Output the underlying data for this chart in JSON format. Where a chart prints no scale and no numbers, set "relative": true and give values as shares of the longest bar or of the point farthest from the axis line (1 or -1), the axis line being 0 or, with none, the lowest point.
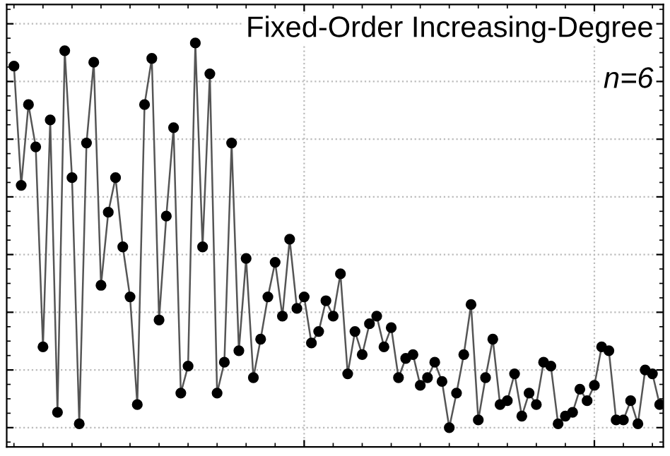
{
  "chart_data": {
    "type": "line",
    "title": "Fixed-Order Increasing-Degree",
    "subtitle": "n=6",
    "relative": true,
    "categories": [
      null,
      null,
      null,
      null,
      null,
      null,
      null,
      null,
      null,
      null,
      null,
      null,
      null,
      null,
      null,
      null,
      null,
      null,
      null,
      null,
      null,
      null,
      null,
      null,
      null,
      null,
      null,
      null,
      null,
      null,
      null,
      null,
      null,
      null,
      null,
      null,
      null,
      null,
      null,
      null,
      null,
      null,
      null,
      null,
      null,
      null,
      null,
      null,
      null,
      null,
      null,
      null,
      null,
      null,
      null,
      null,
      null,
      null,
      null,
      null,
      null,
      null,
      null,
      null,
      null,
      null,
      null,
      null,
      null,
      null,
      null,
      null,
      null,
      null,
      null,
      null,
      null,
      null,
      null,
      null,
      null,
      null,
      null,
      null,
      null,
      null,
      null,
      null,
      null,
      null
    ],
    "series": [
      {
        "color": "#555555",
        "values": [
          0.94,
          0.63,
          0.84,
          0.73,
          0.21,
          0.8,
          0.04,
          0.98,
          0.65,
          0.01,
          0.74,
          0.95,
          0.37,
          0.56,
          0.65,
          0.47,
          0.34,
          0.06,
          0.84,
          0.96,
          0.28,
          0.55,
          0.78,
          0.09,
          0.16,
          1.0,
          0.47,
          0.92,
          0.09,
          0.17,
          0.74,
          0.2,
          0.44,
          0.13,
          0.23,
          0.34,
          0.43,
          0.29,
          0.49,
          0.31,
          0.34,
          0.22,
          0.25,
          0.33,
          0.29,
          0.4,
          0.14,
          0.25,
          0.19,
          0.27,
          0.29,
          0.21,
          0.26,
          0.13,
          0.18,
          0.19,
          0.11,
          0.13,
          0.17,
          0.12,
          0.0,
          0.09,
          0.19,
          0.32,
          0.02,
          0.13,
          0.23,
          0.06,
          0.07,
          0.14,
          0.03,
          0.09,
          0.06,
          0.17,
          0.16,
          0.01,
          0.03,
          0.04,
          0.1,
          0.07,
          0.11,
          0.21,
          0.2,
          0.02,
          0.02,
          0.07,
          0.01,
          0.15,
          0.14,
          0.06
        ]
      }
    ],
    "marker": "circle",
    "line_style": "solid",
    "grid": true,
    "tick_labels": false,
    "legend": false
  }
}
